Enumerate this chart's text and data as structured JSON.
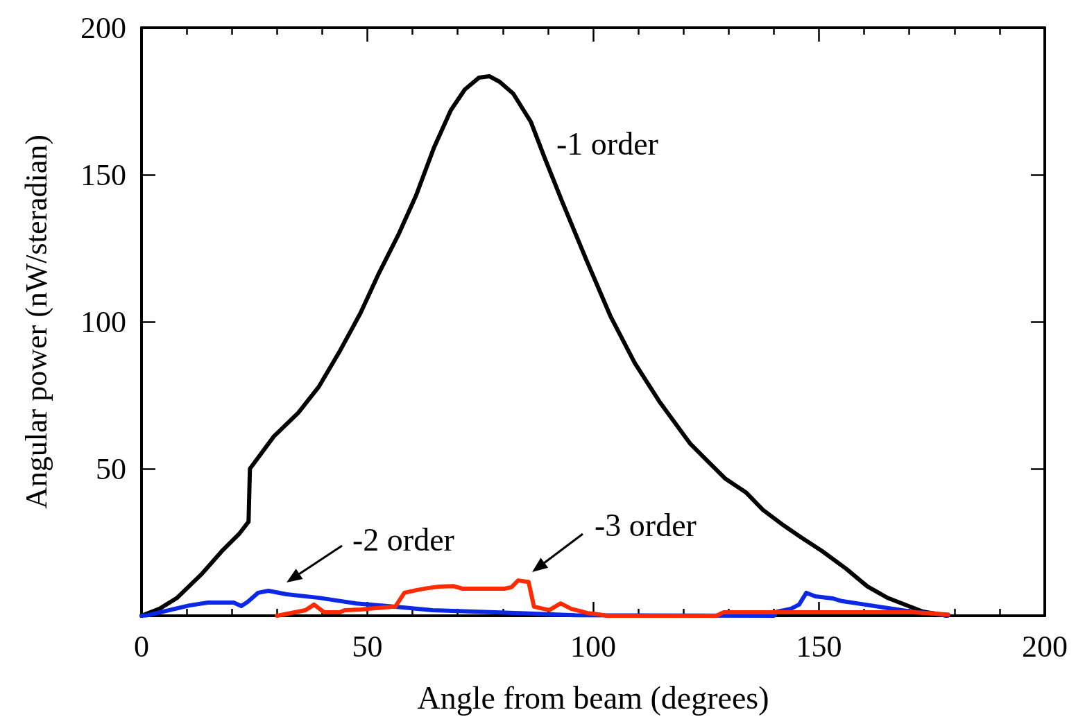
{
  "chart_data": {
    "type": "line",
    "xlabel": "Angle from beam (degrees)",
    "ylabel": "Angular power (nW/steradian)",
    "xlim": [
      0,
      200
    ],
    "xticks": [
      0,
      50,
      100,
      150,
      200
    ],
    "ylim": [
      0,
      200
    ],
    "yticks": [
      {
        "value": 0,
        "label": null
      },
      50,
      100,
      150,
      200
    ],
    "grid": false,
    "marker": "none",
    "line_style": "solid",
    "series": [
      {
        "color": "#000000",
        "x": [
          0,
          4,
          7.8,
          13.2,
          17.8,
          21.7,
          23.7,
          24,
          29.3,
          34.7,
          39.3,
          43.9,
          48.5,
          52.4,
          57,
          60.8,
          64.7,
          68.5,
          71.6,
          74.7,
          77,
          79.3,
          82.3,
          86.2,
          89.2,
          93.1,
          98.5,
          103.8,
          109.2,
          114.6,
          121.5,
          129.2,
          133.8,
          137.6,
          142.2,
          146,
          150.7,
          156,
          160.7,
          165.3,
          173,
          178.3
        ],
        "values": [
          0,
          2.4,
          6,
          14,
          22,
          28,
          32,
          50,
          61,
          69,
          78,
          90,
          103,
          116,
          130,
          143,
          159,
          172,
          179,
          183,
          183.5,
          181.6,
          177.6,
          168,
          156,
          141,
          121,
          102,
          86,
          73,
          58.5,
          46.7,
          42,
          36,
          30.7,
          26.7,
          22,
          16,
          10,
          6,
          1.4,
          0
        ]
      },
      {
        "color": "#0a28e6",
        "x": [
          0,
          1.4,
          10.6,
          14.7,
          20.4,
          22.1,
          23.5,
          25.8,
          28.1,
          32.1,
          39.3,
          47.5,
          55.8,
          64.4,
          78.2,
          96,
          140,
          140.7,
          143.8,
          145.6,
          147.2,
          149.2,
          153,
          155,
          160.2,
          165.3,
          170.4,
          176,
          178.5
        ],
        "values": [
          0,
          0.2,
          3.5,
          4.5,
          4.5,
          3.3,
          4.7,
          7.8,
          8.5,
          7.3,
          6.1,
          4.2,
          3.1,
          1.9,
          1.2,
          0.2,
          0,
          1.4,
          2.4,
          3.8,
          7.8,
          6.6,
          5.9,
          5,
          3.8,
          2.6,
          1.4,
          0.7,
          0
        ]
      },
      {
        "color": "#ff2a00",
        "x": [
          30,
          36.3,
          38.2,
          40.4,
          43.9,
          45,
          48.5,
          50.5,
          56.2,
          58.2,
          60.8,
          63.4,
          65.9,
          69,
          71.1,
          80.3,
          81.9,
          83.4,
          85.7,
          86.9,
          90.3,
          92.8,
          95.1,
          98.8,
          101.2,
          103,
          127.3,
          128.9,
          171,
          178.6
        ],
        "values": [
          0,
          1.9,
          3.8,
          1.2,
          1.2,
          1.9,
          2.1,
          2.4,
          3.1,
          7.8,
          8.7,
          9.4,
          9.9,
          10.1,
          9.2,
          9.2,
          9.7,
          12,
          11.5,
          3.1,
          1.9,
          4.2,
          2.4,
          0.9,
          0.5,
          0,
          0,
          1.2,
          1.2,
          0.4
        ]
      }
    ],
    "annotations": [
      "-1 order",
      "-2 order",
      "-3 order"
    ]
  }
}
